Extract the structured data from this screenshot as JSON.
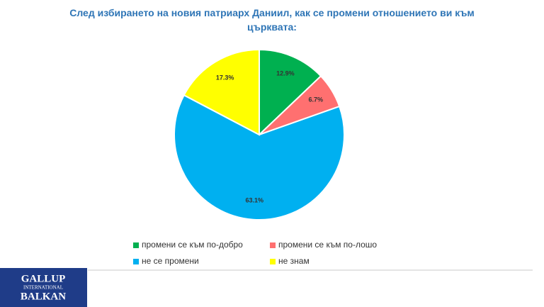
{
  "chart_data": {
    "type": "pie",
    "title": "След избирането на новия патриарх Даниил, как се промени отношението ви към църквата:",
    "categories": [
      "промени се към по-добро",
      "промени се към по-лошо",
      "не се промени",
      "не знам"
    ],
    "values": [
      12.9,
      6.7,
      63.1,
      17.3
    ],
    "value_labels": [
      "12.9%",
      "6.7%",
      "63.1%",
      "17.3%"
    ],
    "colors": [
      "#00b050",
      "#ff7070",
      "#00b0f0",
      "#ffff00"
    ]
  },
  "logo": {
    "lines": [
      "GALLUP",
      "INTERNATIONAL",
      "BALKAN"
    ]
  }
}
